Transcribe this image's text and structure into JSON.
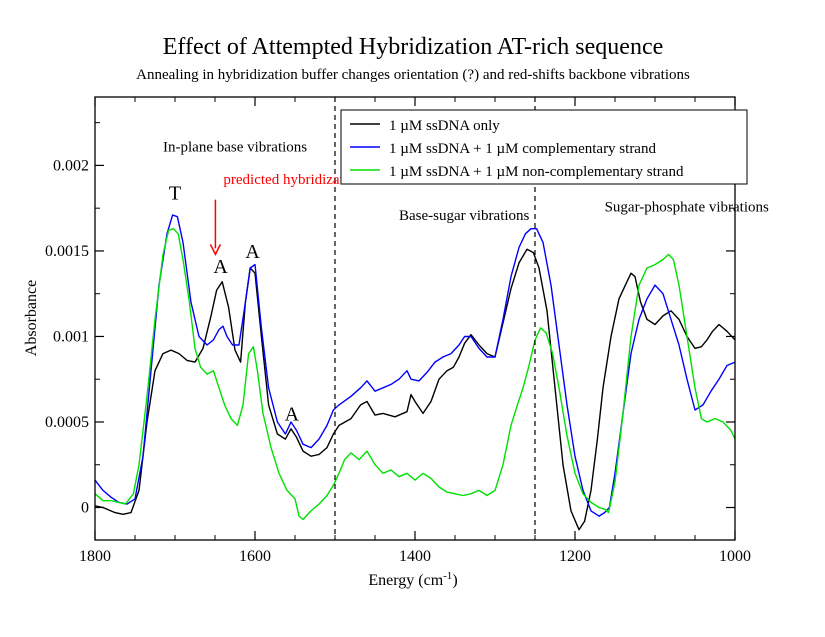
{
  "chart_data": {
    "type": "line",
    "title": "Effect of Attempted Hybridization AT-rich sequence",
    "subtitle": "Annealing in hybridization buffer changes orientation (?) and red-shifts backbone vibrations",
    "xlabel": "Energy (cm",
    "xlabel_sup": "-1",
    "xlabel_close": ")",
    "ylabel": "Absorbance",
    "xlim": [
      1800,
      1000
    ],
    "ylim": [
      -0.00019,
      0.0024
    ],
    "x_ticks": [
      1800,
      1600,
      1400,
      1200,
      1000
    ],
    "x_tick_labels": [
      "1800",
      "1600",
      "1400",
      "1200",
      "1000"
    ],
    "y_ticks": [
      0,
      0.0005,
      0.001,
      0.0015,
      0.002
    ],
    "y_tick_labels": [
      "0",
      "0.0005",
      "0.001",
      "0.0015",
      "0.002"
    ],
    "grid": false,
    "legend_position": "top-right",
    "vlines": [
      1500,
      1250
    ],
    "series": [
      {
        "name": "1 µM ssDNA only",
        "color": "#000000",
        "points": [
          [
            1800,
            1e-05
          ],
          [
            1790,
            0.0
          ],
          [
            1775,
            -3e-05
          ],
          [
            1765,
            -4e-05
          ],
          [
            1755,
            -3e-05
          ],
          [
            1745,
            0.0001
          ],
          [
            1735,
            0.0005
          ],
          [
            1725,
            0.0008
          ],
          [
            1715,
            0.0009
          ],
          [
            1705,
            0.00092
          ],
          [
            1695,
            0.0009
          ],
          [
            1685,
            0.00086
          ],
          [
            1675,
            0.00085
          ],
          [
            1665,
            0.00093
          ],
          [
            1655,
            0.00112
          ],
          [
            1648,
            0.00127
          ],
          [
            1641,
            0.00132
          ],
          [
            1633,
            0.00117
          ],
          [
            1625,
            0.00092
          ],
          [
            1618,
            0.00085
          ],
          [
            1612,
            0.0012
          ],
          [
            1606,
            0.0014
          ],
          [
            1600,
            0.00137
          ],
          [
            1592,
            0.001
          ],
          [
            1583,
            0.0006
          ],
          [
            1572,
            0.00043
          ],
          [
            1562,
            0.0004
          ],
          [
            1555,
            0.00046
          ],
          [
            1548,
            0.00041
          ],
          [
            1540,
            0.00033
          ],
          [
            1530,
            0.0003
          ],
          [
            1520,
            0.00031
          ],
          [
            1510,
            0.00035
          ],
          [
            1502,
            0.00043
          ],
          [
            1495,
            0.00048
          ],
          [
            1480,
            0.00052
          ],
          [
            1468,
            0.0006
          ],
          [
            1460,
            0.00062
          ],
          [
            1450,
            0.00054
          ],
          [
            1440,
            0.00055
          ],
          [
            1425,
            0.00053
          ],
          [
            1410,
            0.00056
          ],
          [
            1405,
            0.00066
          ],
          [
            1400,
            0.00062
          ],
          [
            1390,
            0.00055
          ],
          [
            1380,
            0.00062
          ],
          [
            1370,
            0.00075
          ],
          [
            1360,
            0.0008
          ],
          [
            1352,
            0.00082
          ],
          [
            1345,
            0.00088
          ],
          [
            1338,
            0.00096
          ],
          [
            1330,
            0.00101
          ],
          [
            1320,
            0.00095
          ],
          [
            1310,
            0.0009
          ],
          [
            1300,
            0.00088
          ],
          [
            1290,
            0.00108
          ],
          [
            1280,
            0.00128
          ],
          [
            1270,
            0.00143
          ],
          [
            1260,
            0.00151
          ],
          [
            1252,
            0.00149
          ],
          [
            1245,
            0.0014
          ],
          [
            1235,
            0.00115
          ],
          [
            1225,
            0.0007
          ],
          [
            1215,
            0.00025
          ],
          [
            1205,
            -2e-05
          ],
          [
            1195,
            -0.00013
          ],
          [
            1188,
            -8e-05
          ],
          [
            1180,
            0.0001
          ],
          [
            1172,
            0.0004
          ],
          [
            1165,
            0.0007
          ],
          [
            1155,
            0.001
          ],
          [
            1145,
            0.00122
          ],
          [
            1137,
            0.0013
          ],
          [
            1130,
            0.00137
          ],
          [
            1125,
            0.00135
          ],
          [
            1118,
            0.0012
          ],
          [
            1110,
            0.0011
          ],
          [
            1100,
            0.00107
          ],
          [
            1090,
            0.00112
          ],
          [
            1080,
            0.00115
          ],
          [
            1070,
            0.0011
          ],
          [
            1060,
            0.001
          ],
          [
            1050,
            0.00093
          ],
          [
            1042,
            0.00094
          ],
          [
            1035,
            0.00098
          ],
          [
            1028,
            0.00103
          ],
          [
            1020,
            0.00107
          ],
          [
            1010,
            0.00103
          ],
          [
            1000,
            0.00098
          ]
        ]
      },
      {
        "name": "1 µM ssDNA + 1 µM complementary strand",
        "color": "#0000ff",
        "points": [
          [
            1800,
            0.00016
          ],
          [
            1790,
            0.0001
          ],
          [
            1780,
            6e-05
          ],
          [
            1770,
            3e-05
          ],
          [
            1760,
            2e-05
          ],
          [
            1750,
            5e-05
          ],
          [
            1740,
            0.0003
          ],
          [
            1730,
            0.0008
          ],
          [
            1720,
            0.0013
          ],
          [
            1710,
            0.0016
          ],
          [
            1703,
            0.00171
          ],
          [
            1697,
            0.0017
          ],
          [
            1690,
            0.00155
          ],
          [
            1680,
            0.0012
          ],
          [
            1670,
            0.001
          ],
          [
            1660,
            0.00095
          ],
          [
            1652,
            0.00098
          ],
          [
            1645,
            0.00104
          ],
          [
            1640,
            0.00106
          ],
          [
            1635,
            0.001
          ],
          [
            1628,
            0.00095
          ],
          [
            1620,
            0.00095
          ],
          [
            1612,
            0.0012
          ],
          [
            1606,
            0.0014
          ],
          [
            1600,
            0.00142
          ],
          [
            1592,
            0.00105
          ],
          [
            1583,
            0.0007
          ],
          [
            1572,
            0.0005
          ],
          [
            1562,
            0.00043
          ],
          [
            1555,
            0.0005
          ],
          [
            1548,
            0.00045
          ],
          [
            1540,
            0.00037
          ],
          [
            1530,
            0.00035
          ],
          [
            1520,
            0.0004
          ],
          [
            1510,
            0.00048
          ],
          [
            1502,
            0.00057
          ],
          [
            1495,
            0.0006
          ],
          [
            1480,
            0.00065
          ],
          [
            1468,
            0.0007
          ],
          [
            1460,
            0.00074
          ],
          [
            1450,
            0.00068
          ],
          [
            1440,
            0.0007
          ],
          [
            1430,
            0.00072
          ],
          [
            1420,
            0.00075
          ],
          [
            1410,
            0.0008
          ],
          [
            1405,
            0.00075
          ],
          [
            1395,
            0.00074
          ],
          [
            1385,
            0.00079
          ],
          [
            1375,
            0.00085
          ],
          [
            1365,
            0.00088
          ],
          [
            1355,
            0.0009
          ],
          [
            1345,
            0.00095
          ],
          [
            1338,
            0.001
          ],
          [
            1330,
            0.001
          ],
          [
            1320,
            0.00093
          ],
          [
            1310,
            0.00088
          ],
          [
            1300,
            0.00088
          ],
          [
            1290,
            0.0011
          ],
          [
            1280,
            0.00135
          ],
          [
            1270,
            0.00152
          ],
          [
            1262,
            0.0016
          ],
          [
            1255,
            0.00163
          ],
          [
            1248,
            0.00163
          ],
          [
            1240,
            0.00155
          ],
          [
            1230,
            0.0013
          ],
          [
            1220,
            0.00095
          ],
          [
            1210,
            0.0006
          ],
          [
            1200,
            0.0003
          ],
          [
            1190,
            0.0001
          ],
          [
            1180,
            -2e-05
          ],
          [
            1170,
            -5e-05
          ],
          [
            1163,
            -3e-05
          ],
          [
            1157,
            0.0
          ],
          [
            1150,
            0.0002
          ],
          [
            1140,
            0.00055
          ],
          [
            1130,
            0.0009
          ],
          [
            1120,
            0.0011
          ],
          [
            1110,
            0.00122
          ],
          [
            1100,
            0.0013
          ],
          [
            1090,
            0.00125
          ],
          [
            1080,
            0.0011
          ],
          [
            1070,
            0.00095
          ],
          [
            1060,
            0.00075
          ],
          [
            1050,
            0.00057
          ],
          [
            1040,
            0.0006
          ],
          [
            1030,
            0.00068
          ],
          [
            1020,
            0.00075
          ],
          [
            1010,
            0.00083
          ],
          [
            1000,
            0.00085
          ]
        ]
      },
      {
        "name": "1 µM ssDNA + 1 µM non-complementary strand",
        "color": "#00e000",
        "points": [
          [
            1800,
            8e-05
          ],
          [
            1790,
            4e-05
          ],
          [
            1780,
            4e-05
          ],
          [
            1770,
            3e-05
          ],
          [
            1762,
            2e-05
          ],
          [
            1752,
            8e-05
          ],
          [
            1745,
            0.00025
          ],
          [
            1735,
            0.00065
          ],
          [
            1725,
            0.0011
          ],
          [
            1715,
            0.00148
          ],
          [
            1708,
            0.00162
          ],
          [
            1702,
            0.00163
          ],
          [
            1696,
            0.0016
          ],
          [
            1690,
            0.00145
          ],
          [
            1682,
            0.0012
          ],
          [
            1675,
            0.00093
          ],
          [
            1668,
            0.00082
          ],
          [
            1660,
            0.00078
          ],
          [
            1652,
            0.0008
          ],
          [
            1645,
            0.0007
          ],
          [
            1638,
            0.0006
          ],
          [
            1630,
            0.00052
          ],
          [
            1622,
            0.00048
          ],
          [
            1615,
            0.0006
          ],
          [
            1608,
            0.0009
          ],
          [
            1602,
            0.00094
          ],
          [
            1597,
            0.0008
          ],
          [
            1590,
            0.00055
          ],
          [
            1580,
            0.00035
          ],
          [
            1570,
            0.0002
          ],
          [
            1560,
            0.0001
          ],
          [
            1550,
            5e-05
          ],
          [
            1545,
            -5e-05
          ],
          [
            1540,
            -7e-05
          ],
          [
            1530,
            -2e-05
          ],
          [
            1520,
            2e-05
          ],
          [
            1510,
            7e-05
          ],
          [
            1502,
            0.00013
          ],
          [
            1495,
            0.0002
          ],
          [
            1488,
            0.00028
          ],
          [
            1480,
            0.00032
          ],
          [
            1470,
            0.00028
          ],
          [
            1460,
            0.00033
          ],
          [
            1450,
            0.00025
          ],
          [
            1440,
            0.0002
          ],
          [
            1430,
            0.00022
          ],
          [
            1420,
            0.00018
          ],
          [
            1410,
            0.0002
          ],
          [
            1400,
            0.00016
          ],
          [
            1390,
            0.0002
          ],
          [
            1380,
            0.00017
          ],
          [
            1370,
            0.00012
          ],
          [
            1360,
            9e-05
          ],
          [
            1350,
            8e-05
          ],
          [
            1340,
            7e-05
          ],
          [
            1330,
            8e-05
          ],
          [
            1320,
            0.0001
          ],
          [
            1310,
            7e-05
          ],
          [
            1300,
            0.0001
          ],
          [
            1290,
            0.00025
          ],
          [
            1280,
            0.00048
          ],
          [
            1272,
            0.0006
          ],
          [
            1265,
            0.0007
          ],
          [
            1258,
            0.00082
          ],
          [
            1250,
            0.00098
          ],
          [
            1243,
            0.00105
          ],
          [
            1236,
            0.00102
          ],
          [
            1228,
            0.0009
          ],
          [
            1220,
            0.0007
          ],
          [
            1210,
            0.00042
          ],
          [
            1200,
            0.0002
          ],
          [
            1190,
            8e-05
          ],
          [
            1180,
            3e-05
          ],
          [
            1170,
            0.0
          ],
          [
            1163,
            -1e-05
          ],
          [
            1158,
            -3e-05
          ],
          [
            1150,
            0.00015
          ],
          [
            1140,
            0.00055
          ],
          [
            1130,
            0.001
          ],
          [
            1120,
            0.0013
          ],
          [
            1110,
            0.0014
          ],
          [
            1100,
            0.00142
          ],
          [
            1090,
            0.00145
          ],
          [
            1083,
            0.00148
          ],
          [
            1077,
            0.00145
          ],
          [
            1070,
            0.0013
          ],
          [
            1060,
            0.001
          ],
          [
            1050,
            0.0007
          ],
          [
            1042,
            0.00052
          ],
          [
            1035,
            0.0005
          ],
          [
            1025,
            0.00052
          ],
          [
            1015,
            0.0005
          ],
          [
            1005,
            0.00045
          ],
          [
            1000,
            0.0004
          ]
        ]
      }
    ],
    "region_labels": [
      {
        "text": "In-plane base vibrations",
        "x": 1715,
        "y": 0.00208
      },
      {
        "text": "Base-sugar vibrations",
        "x": 1420,
        "y": 0.00168
      },
      {
        "text": "Sugar-phosphate vibrations",
        "x": 1163,
        "y": 0.00173
      }
    ],
    "peak_labels": [
      {
        "text": "T",
        "x": 1700,
        "y": 0.0018
      },
      {
        "text": "A",
        "x": 1643,
        "y": 0.00137
      },
      {
        "text": "A",
        "x": 1603,
        "y": 0.00146
      },
      {
        "text": "A",
        "x": 1554,
        "y": 0.00051
      }
    ],
    "annotation": {
      "text": "predicted hybridization",
      "color": "#ff0000",
      "x": 1647,
      "y": 0.00189,
      "arrow_from_y": 0.0018,
      "arrow_to_y": 0.00148
    }
  }
}
